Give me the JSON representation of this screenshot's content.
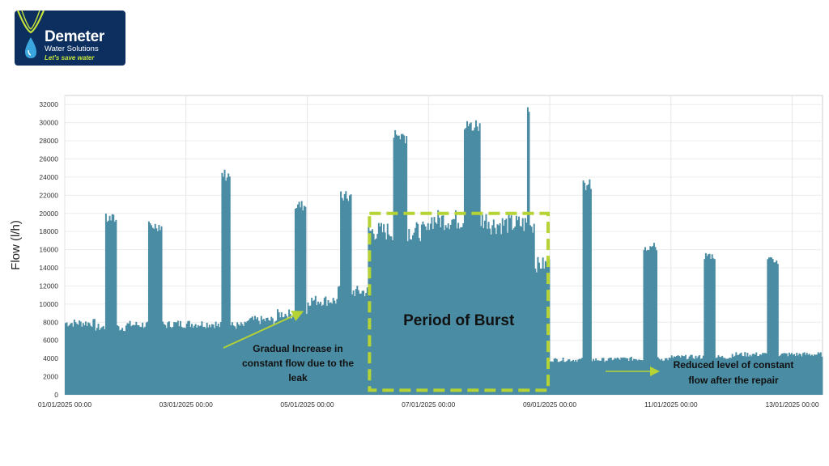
{
  "logo": {
    "name": "Demeter",
    "subtitle": "Water Solutions",
    "tagline": "Let's save water",
    "colors": {
      "background": "#0d2f5f",
      "accent": "#c5e33a",
      "drop": "#3aa6dd"
    }
  },
  "chart_data": {
    "type": "bar",
    "title": "",
    "xlabel": "",
    "ylabel": "Flow (l/h)",
    "ylim": [
      0,
      33000
    ],
    "xlim": [
      "01/01/2025 00:00",
      "13/01/2025 12:00"
    ],
    "x_unit": "hours since 01/01/2025 00:00",
    "yticks": [
      0,
      2000,
      4000,
      6000,
      8000,
      10000,
      12000,
      14000,
      16000,
      18000,
      20000,
      22000,
      24000,
      26000,
      28000,
      30000,
      32000
    ],
    "xticks": [
      "01/01/2025 00:00",
      "03/01/2025 00:00",
      "05/01/2025 00:00",
      "07/01/2025 00:00",
      "09/01/2025 00:00",
      "11/01/2025 00:00",
      "13/01/2025 00:00"
    ],
    "grid": true,
    "bar_color": "#4a8ca3",
    "baseline_segments": [
      {
        "start": "01/01/2025 00:00",
        "end": "01/01/2025 12:00",
        "flow": 8000
      },
      {
        "start": "01/01/2025 12:00",
        "end": "02/01/2025 00:00",
        "flow": 7500
      },
      {
        "start": "02/01/2025 00:00",
        "end": "02/01/2025 18:00",
        "flow": 7800
      },
      {
        "start": "02/01/2025 18:00",
        "end": "03/01/2025 12:00",
        "flow": 7900
      },
      {
        "start": "03/01/2025 12:00",
        "end": "04/01/2025 00:00",
        "flow": 7700
      },
      {
        "start": "04/01/2025 00:00",
        "end": "04/01/2025 12:00",
        "flow": 8300
      },
      {
        "start": "04/01/2025 12:00",
        "end": "05/01/2025 00:00",
        "flow": 9000
      },
      {
        "start": "05/01/2025 00:00",
        "end": "05/01/2025 12:00",
        "flow": 10500
      },
      {
        "start": "05/01/2025 12:00",
        "end": "06/01/2025 00:00",
        "flow": 11500
      },
      {
        "start": "06/01/2025 00:00",
        "end": "07/01/2025 00:00",
        "flow": 18200
      },
      {
        "start": "07/01/2025 00:00",
        "end": "08/01/2025 00:00",
        "flow": 19500
      },
      {
        "start": "08/01/2025 00:00",
        "end": "08/01/2025 18:00",
        "flow": 19000
      },
      {
        "start": "08/01/2025 18:00",
        "end": "09/01/2025 00:00",
        "flow": 14500
      },
      {
        "start": "09/01/2025 00:00",
        "end": "10/01/2025 00:00",
        "flow": 3900
      },
      {
        "start": "10/01/2025 00:00",
        "end": "11/01/2025 00:00",
        "flow": 4000
      },
      {
        "start": "11/01/2025 00:00",
        "end": "12/01/2025 00:00",
        "flow": 4200
      },
      {
        "start": "12/01/2025 00:00",
        "end": "13/01/2025 12:00",
        "flow": 4500
      }
    ],
    "peaks": [
      {
        "start": "01/01/2025 16:00",
        "end": "01/01/2025 20:00",
        "flow": 20000
      },
      {
        "start": "02/01/2025 09:00",
        "end": "02/01/2025 14:00",
        "flow": 19200
      },
      {
        "start": "03/01/2025 14:00",
        "end": "03/01/2025 17:00",
        "flow": 25000
      },
      {
        "start": "04/01/2025 19:00",
        "end": "04/01/2025 23:00",
        "flow": 21500
      },
      {
        "start": "05/01/2025 13:00",
        "end": "05/01/2025 17:00",
        "flow": 22500
      },
      {
        "start": "06/01/2025 10:00",
        "end": "06/01/2025 15:00",
        "flow": 29500
      },
      {
        "start": "07/01/2025 14:00",
        "end": "07/01/2025 20:00",
        "flow": 30500
      },
      {
        "start": "08/01/2025 15:00",
        "end": "08/01/2025 15:30",
        "flow": 33000
      },
      {
        "start": "09/01/2025 13:00",
        "end": "09/01/2025 16:00",
        "flow": 23800
      },
      {
        "start": "10/01/2025 13:00",
        "end": "10/01/2025 18:00",
        "flow": 16800
      },
      {
        "start": "11/01/2025 13:00",
        "end": "11/01/2025 17:00",
        "flow": 15800
      },
      {
        "start": "12/01/2025 14:00",
        "end": "12/01/2025 18:00",
        "flow": 15200
      }
    ],
    "annotations": {
      "burst_box": {
        "start": "06/01/2025 00:00",
        "end": "09/01/2025 00:00",
        "flow_top": 20000,
        "flow_bottom": 500,
        "color": "#b5d335"
      },
      "burst_label": "Period of Burst",
      "gradual": [
        "Gradual Increase in",
        "constant flow due to the",
        "leak"
      ],
      "reduced": [
        "Reduced level of constant",
        "flow after the repair"
      ],
      "arrow_color": "#b5d335"
    }
  }
}
